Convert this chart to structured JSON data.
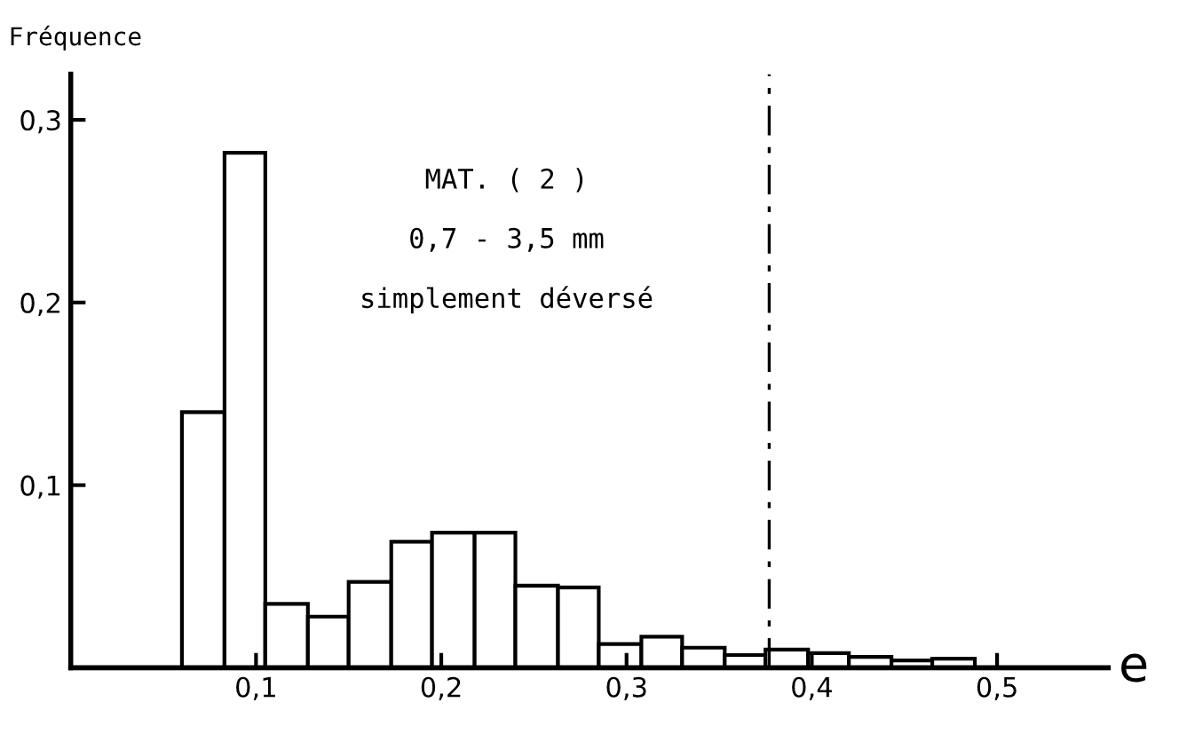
{
  "chart_data": {
    "type": "histogram",
    "xlabel": "e",
    "ylabel": "Fréquence",
    "bins": [
      0.06,
      0.083,
      0.105,
      0.128,
      0.15,
      0.173,
      0.195,
      0.218,
      0.24,
      0.263,
      0.285,
      0.308,
      0.33,
      0.353,
      0.375,
      0.398,
      0.42,
      0.443,
      0.465,
      0.488
    ],
    "values": [
      0.14,
      0.282,
      0.035,
      0.028,
      0.047,
      0.069,
      0.074,
      0.074,
      0.045,
      0.044,
      0.013,
      0.017,
      0.011,
      0.007,
      0.01,
      0.008,
      0.006,
      0.004,
      0.005
    ],
    "color": "#ffffff",
    "xlim": [
      0,
      0.56
    ],
    "ylim": [
      0,
      0.325
    ],
    "xticks": [
      {
        "value": 0.1,
        "label": "0,1"
      },
      {
        "value": 0.2,
        "label": "0,2"
      },
      {
        "value": 0.3,
        "label": "0,3"
      },
      {
        "value": 0.4,
        "label": "0,4"
      },
      {
        "value": 0.5,
        "label": "0,5"
      }
    ],
    "yticks": [
      {
        "value": 0.1,
        "label": "0,1"
      },
      {
        "value": 0.2,
        "label": "0,2"
      },
      {
        "value": 0.3,
        "label": "0,3"
      }
    ],
    "ref_lines": [
      {
        "axis": "x",
        "value": 0.377,
        "line_style": "dashed",
        "color": "#000000"
      }
    ],
    "annotations": [
      "MAT. ( 2 )",
      "0,7 - 3,5 mm",
      "simplement déversé"
    ],
    "grid": false
  }
}
